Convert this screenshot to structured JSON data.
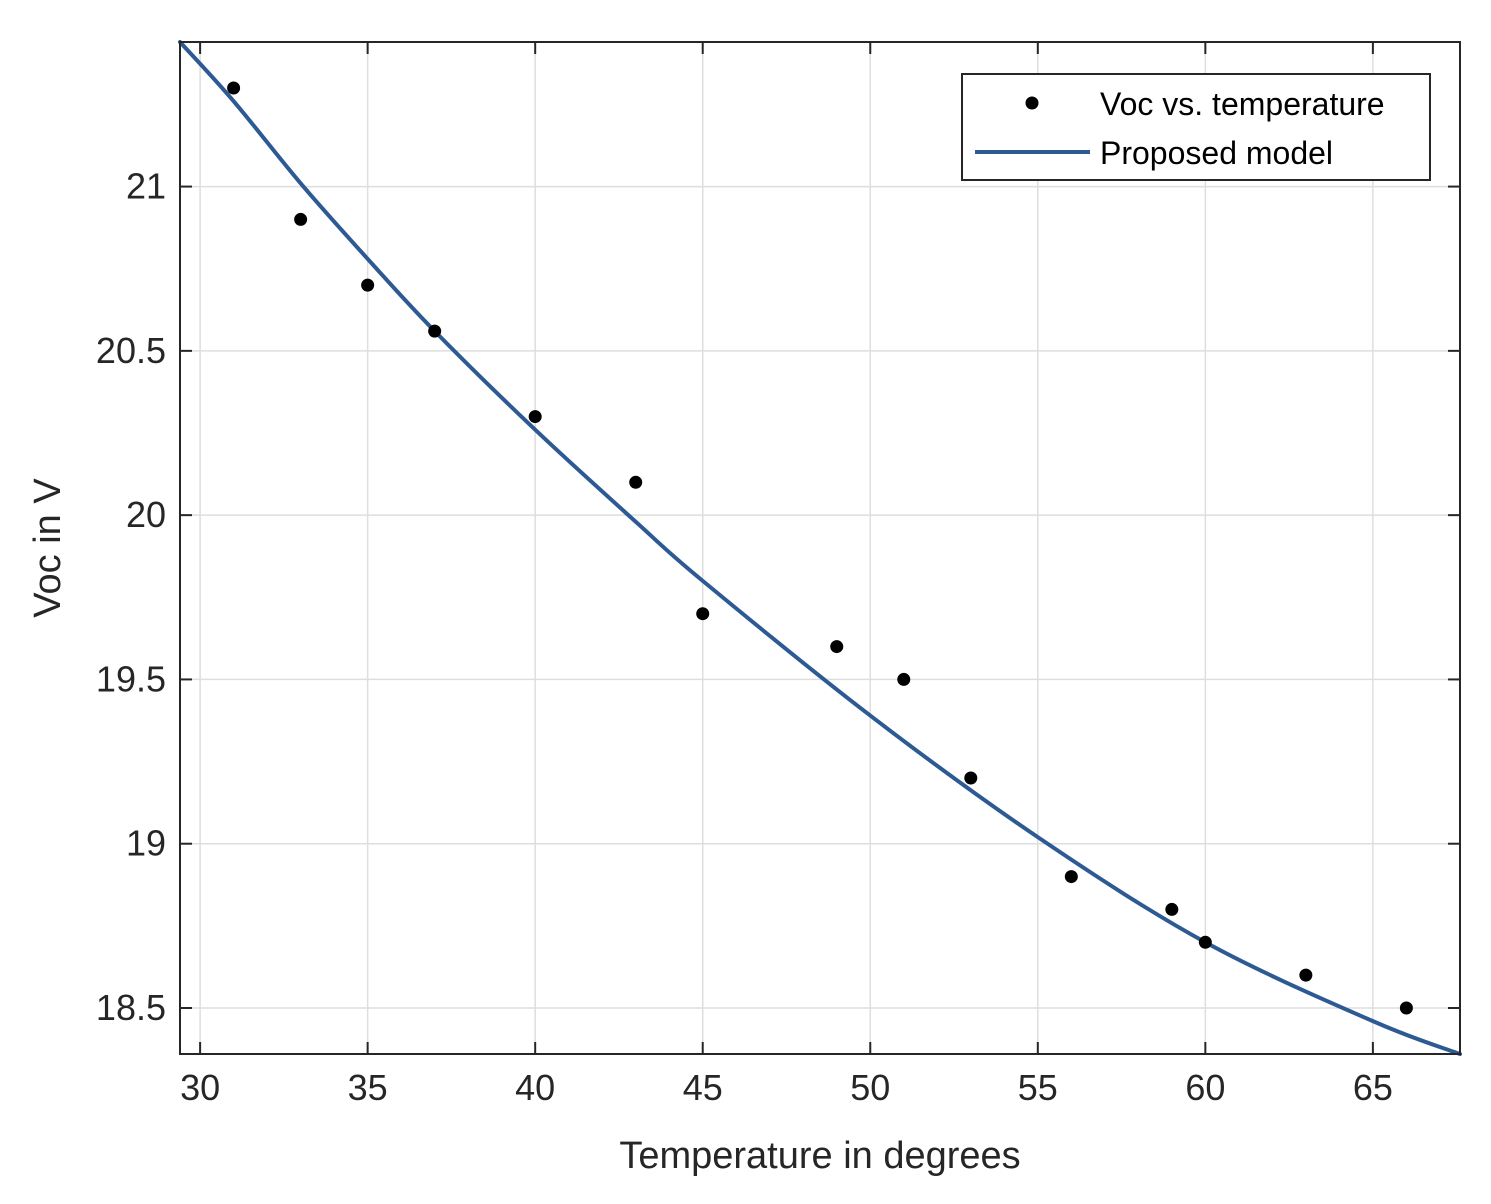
{
  "chart_data": {
    "type": "scatter",
    "title": "",
    "xlabel": "Temperature in degrees",
    "ylabel": "Voc in V",
    "xlim": [
      29.4,
      67.6
    ],
    "ylim": [
      18.36,
      21.44
    ],
    "grid": true,
    "legend_position": "top-right",
    "xticks": [
      30,
      35,
      40,
      45,
      50,
      55,
      60,
      65
    ],
    "xtick_labels": [
      "30",
      "35",
      "40",
      "45",
      "50",
      "55",
      "60",
      "65"
    ],
    "yticks": [
      18.5,
      19,
      19.5,
      20,
      20.5,
      21
    ],
    "ytick_labels": [
      "18.5",
      "19",
      "19.5",
      "20",
      "20.5",
      "21"
    ],
    "series": [
      {
        "name": "Voc vs. temperature",
        "kind": "points",
        "color": "#000000",
        "x": [
          31,
          33,
          35,
          37,
          40,
          43,
          45,
          49,
          51,
          53,
          56,
          59,
          60,
          63,
          66
        ],
        "y": [
          21.3,
          20.9,
          20.7,
          20.56,
          20.3,
          20.1,
          19.7,
          19.6,
          19.5,
          19.2,
          18.9,
          18.8,
          18.7,
          18.6,
          18.5
        ]
      },
      {
        "name": "Proposed model",
        "kind": "line",
        "color": "#2e5a94",
        "x": [
          29.4,
          31,
          33,
          35,
          37,
          40,
          43,
          45,
          50,
          55,
          60,
          65,
          67.6
        ],
        "y": [
          21.44,
          21.26,
          21.01,
          20.78,
          20.56,
          20.26,
          19.98,
          19.8,
          19.39,
          19.02,
          18.7,
          18.46,
          18.36
        ]
      }
    ]
  }
}
